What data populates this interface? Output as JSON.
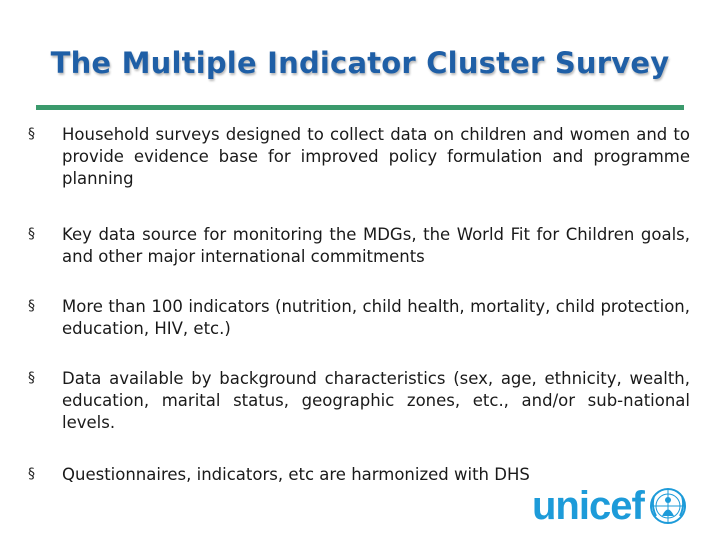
{
  "slide": {
    "title": "The Multiple Indicator Cluster Survey",
    "bullets": [
      {
        "marker": "§",
        "text": "Household surveys designed to collect data on children and women and to provide evidence base for improved policy formulation and programme planning"
      },
      {
        "marker": "§",
        "text": "Key data source for monitoring the MDGs, the World Fit for Children goals, and other major international commitments"
      },
      {
        "marker": "§",
        "text": "More than 100 indicators (nutrition, child health, mortality, child protection, education, HIV, etc.)"
      },
      {
        "marker": "§",
        "text": "Data available by background characteristics (sex, age, ethnicity, wealth, education, marital status, geographic zones, etc., and/or sub-national levels."
      },
      {
        "marker": "§",
        "text": "Questionnaires, indicators, etc are harmonized with DHS"
      }
    ]
  },
  "logo": {
    "text": "unicef",
    "emblem_icon": "unicef-emblem-icon"
  },
  "colors": {
    "title": "#1f5fa6",
    "rule": "#3b9a6c",
    "logo": "#1d9bd9"
  }
}
